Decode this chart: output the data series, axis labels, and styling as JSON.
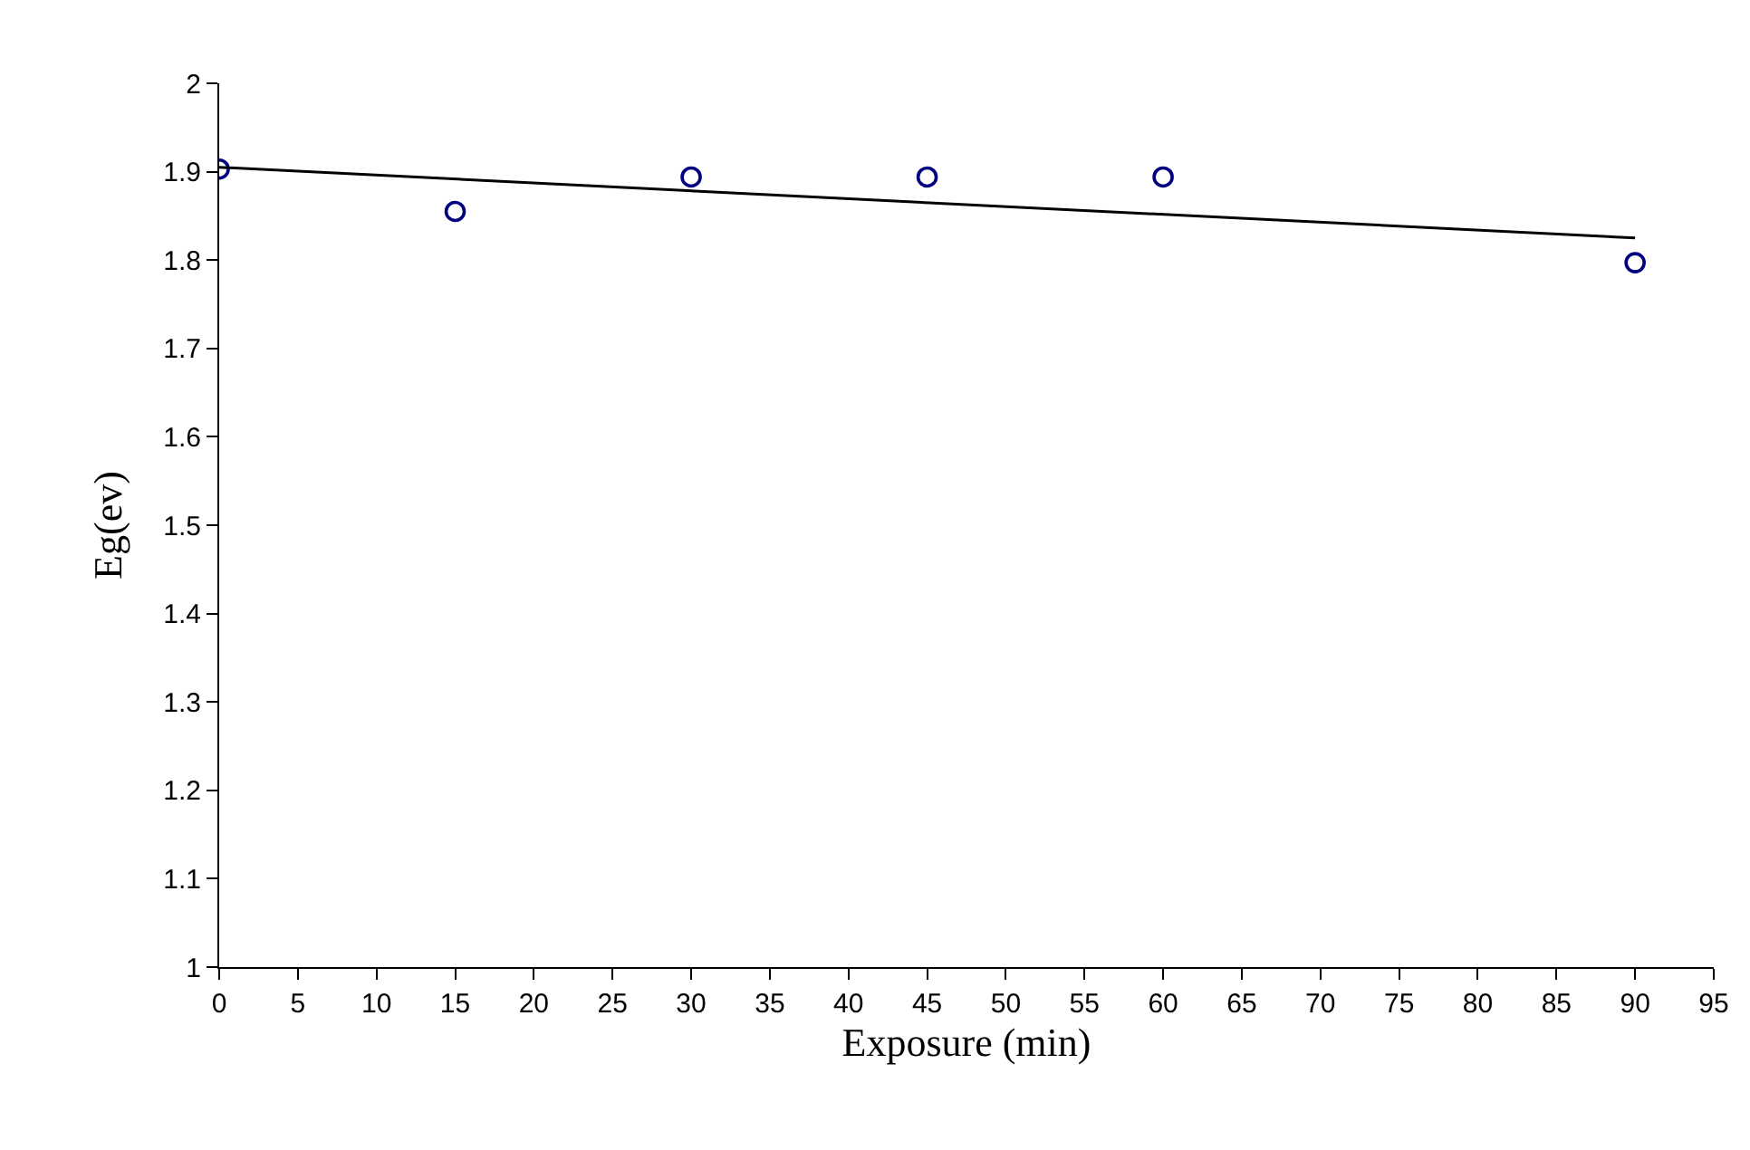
{
  "chart_data": {
    "type": "scatter",
    "xlabel": "Exposure (min)",
    "ylabel": "Eg(ev)",
    "x": [
      0,
      15,
      30,
      45,
      60,
      90
    ],
    "series": [
      {
        "color": "#000080",
        "marker": "circle",
        "values": [
          1.903,
          1.855,
          1.894,
          1.894,
          1.894,
          1.797
        ]
      },
      {
        "type": "line",
        "color": "#000000",
        "marker": "none",
        "line_style": "solid",
        "x": [
          0,
          90
        ],
        "values": [
          1.905,
          1.825
        ]
      }
    ],
    "xlim": [
      0,
      95
    ],
    "xticks": [
      0,
      5,
      10,
      15,
      20,
      25,
      30,
      35,
      40,
      45,
      50,
      55,
      60,
      65,
      70,
      75,
      80,
      85,
      90,
      95
    ],
    "ylim": [
      1,
      2
    ],
    "yticks": [
      1,
      1.1,
      1.2,
      1.3,
      1.4,
      1.5,
      1.6,
      1.7,
      1.8,
      1.9,
      2
    ],
    "grid": false
  }
}
